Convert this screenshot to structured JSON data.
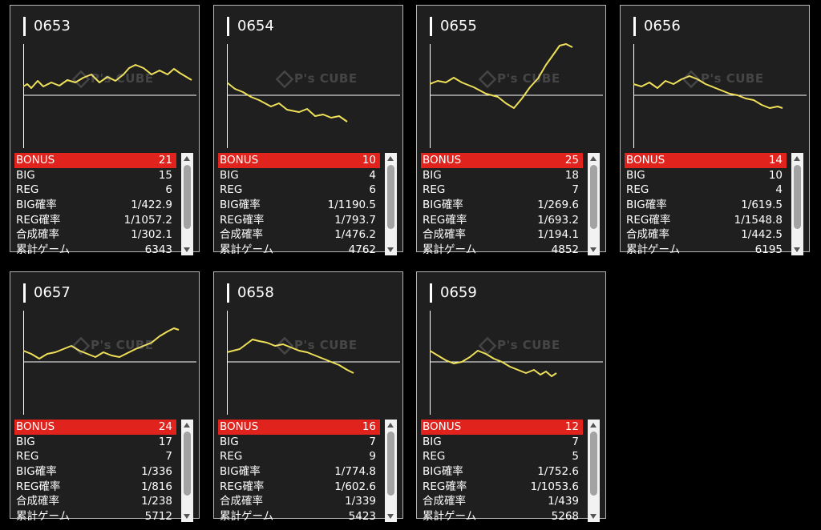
{
  "watermark_text": "P's CUBE",
  "colors": {
    "background": "#000000",
    "card": "#1f1f1f",
    "line": "#efe05a",
    "bonus_row": "#e0231c"
  },
  "machines": [
    {
      "id": "0653",
      "bonus": "21",
      "big": "15",
      "reg": "6",
      "big_rate": "1/422.9",
      "reg_rate": "1/1057.2",
      "combined_rate": "1/302.1",
      "total_games": "6343",
      "curve": [
        [
          0,
          55
        ],
        [
          5,
          52
        ],
        [
          10,
          57
        ],
        [
          18,
          48
        ],
        [
          25,
          55
        ],
        [
          35,
          50
        ],
        [
          45,
          54
        ],
        [
          55,
          47
        ],
        [
          65,
          50
        ],
        [
          75,
          44
        ],
        [
          85,
          40
        ],
        [
          95,
          50
        ],
        [
          105,
          43
        ],
        [
          115,
          48
        ],
        [
          125,
          40
        ],
        [
          132,
          32
        ],
        [
          140,
          28
        ],
        [
          150,
          32
        ],
        [
          160,
          40
        ],
        [
          170,
          35
        ],
        [
          180,
          40
        ],
        [
          188,
          33
        ],
        [
          195,
          38
        ],
        [
          205,
          44
        ],
        [
          210,
          47
        ]
      ]
    },
    {
      "id": "0654",
      "bonus": "10",
      "big": "4",
      "reg": "6",
      "big_rate": "1/1190.5",
      "reg_rate": "1/793.7",
      "combined_rate": "1/476.2",
      "total_games": "4762",
      "curve": [
        [
          0,
          50
        ],
        [
          10,
          58
        ],
        [
          20,
          62
        ],
        [
          30,
          68
        ],
        [
          40,
          72
        ],
        [
          55,
          80
        ],
        [
          65,
          76
        ],
        [
          75,
          84
        ],
        [
          90,
          87
        ],
        [
          100,
          83
        ],
        [
          110,
          92
        ],
        [
          120,
          90
        ],
        [
          130,
          94
        ],
        [
          140,
          92
        ],
        [
          150,
          99
        ]
      ]
    },
    {
      "id": "0655",
      "bonus": "25",
      "big": "18",
      "reg": "7",
      "big_rate": "1/269.6",
      "reg_rate": "1/693.2",
      "combined_rate": "1/194.1",
      "total_games": "4852",
      "curve": [
        [
          0,
          52
        ],
        [
          10,
          48
        ],
        [
          20,
          50
        ],
        [
          30,
          44
        ],
        [
          40,
          50
        ],
        [
          55,
          56
        ],
        [
          70,
          64
        ],
        [
          85,
          68
        ],
        [
          95,
          76
        ],
        [
          105,
          82
        ],
        [
          115,
          70
        ],
        [
          125,
          56
        ],
        [
          135,
          45
        ],
        [
          145,
          28
        ],
        [
          155,
          14
        ],
        [
          162,
          4
        ],
        [
          170,
          2
        ],
        [
          178,
          6
        ]
      ]
    },
    {
      "id": "0656",
      "bonus": "14",
      "big": "10",
      "reg": "4",
      "big_rate": "1/619.5",
      "reg_rate": "1/1548.8",
      "combined_rate": "1/442.5",
      "total_games": "6195",
      "curve": [
        [
          0,
          52
        ],
        [
          10,
          55
        ],
        [
          20,
          50
        ],
        [
          30,
          57
        ],
        [
          40,
          48
        ],
        [
          50,
          52
        ],
        [
          60,
          46
        ],
        [
          70,
          42
        ],
        [
          80,
          46
        ],
        [
          90,
          52
        ],
        [
          100,
          56
        ],
        [
          110,
          60
        ],
        [
          120,
          64
        ],
        [
          130,
          66
        ],
        [
          140,
          70
        ],
        [
          150,
          72
        ],
        [
          160,
          78
        ],
        [
          170,
          82
        ],
        [
          180,
          80
        ],
        [
          186,
          82
        ]
      ]
    },
    {
      "id": "0657",
      "bonus": "24",
      "big": "17",
      "reg": "7",
      "big_rate": "1/336",
      "reg_rate": "1/816",
      "combined_rate": "1/238",
      "total_games": "5712",
      "curve": [
        [
          0,
          52
        ],
        [
          10,
          56
        ],
        [
          20,
          62
        ],
        [
          30,
          56
        ],
        [
          40,
          54
        ],
        [
          50,
          50
        ],
        [
          60,
          46
        ],
        [
          70,
          52
        ],
        [
          80,
          56
        ],
        [
          90,
          60
        ],
        [
          100,
          54
        ],
        [
          110,
          58
        ],
        [
          120,
          60
        ],
        [
          130,
          55
        ],
        [
          140,
          50
        ],
        [
          150,
          46
        ],
        [
          160,
          42
        ],
        [
          170,
          34
        ],
        [
          180,
          28
        ],
        [
          188,
          24
        ],
        [
          194,
          26
        ]
      ]
    },
    {
      "id": "0658",
      "bonus": "16",
      "big": "7",
      "reg": "9",
      "big_rate": "1/774.8",
      "reg_rate": "1/602.6",
      "combined_rate": "1/339",
      "total_games": "5423",
      "curve": [
        [
          0,
          54
        ],
        [
          8,
          52
        ],
        [
          16,
          50
        ],
        [
          24,
          44
        ],
        [
          32,
          38
        ],
        [
          40,
          40
        ],
        [
          50,
          42
        ],
        [
          60,
          46
        ],
        [
          70,
          44
        ],
        [
          80,
          48
        ],
        [
          90,
          52
        ],
        [
          100,
          54
        ],
        [
          110,
          58
        ],
        [
          120,
          62
        ],
        [
          130,
          66
        ],
        [
          140,
          70
        ],
        [
          150,
          76
        ],
        [
          158,
          80
        ]
      ]
    },
    {
      "id": "0659",
      "bonus": "12",
      "big": "7",
      "reg": "5",
      "big_rate": "1/752.6",
      "reg_rate": "1/1053.6",
      "combined_rate": "1/439",
      "total_games": "5268",
      "curve": [
        [
          0,
          52
        ],
        [
          10,
          58
        ],
        [
          20,
          64
        ],
        [
          30,
          68
        ],
        [
          40,
          66
        ],
        [
          50,
          60
        ],
        [
          60,
          52
        ],
        [
          70,
          56
        ],
        [
          80,
          62
        ],
        [
          90,
          66
        ],
        [
          100,
          72
        ],
        [
          110,
          76
        ],
        [
          120,
          80
        ],
        [
          130,
          76
        ],
        [
          138,
          82
        ],
        [
          145,
          78
        ],
        [
          152,
          84
        ],
        [
          158,
          80
        ]
      ]
    }
  ],
  "labels": {
    "bonus": "BONUS",
    "big": "BIG",
    "reg": "REG",
    "big_rate": "BIG確率",
    "reg_rate": "REG確率",
    "combined_rate": "合成確率",
    "total_games": "累計ゲーム"
  }
}
